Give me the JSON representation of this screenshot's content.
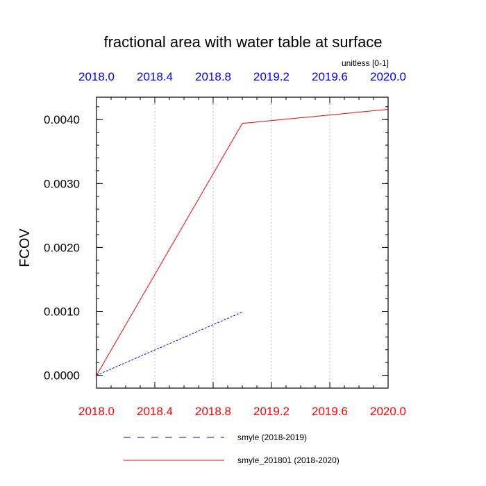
{
  "chart_data": {
    "type": "line",
    "title": "fractional area with water table at surface",
    "units": "unitless [0-1]",
    "ylabel": "FCOV",
    "xlim": [
      2018.0,
      2020.0
    ],
    "ylim": [
      -0.0002,
      0.00435
    ],
    "x_ticks": [
      "2018.0",
      "2018.4",
      "2018.8",
      "2019.2",
      "2019.6",
      "2020.0"
    ],
    "y_ticks": [
      "0.0000",
      "0.0010",
      "0.0020",
      "0.0030",
      "0.0040"
    ],
    "grid": "vertical dotted at top-axis ticks",
    "top_axis_color": "#0000ff",
    "bottom_axis_color": "#ff0000",
    "legend_position": "bottom",
    "series": [
      {
        "name": "smyle (2018-2019)",
        "color": "#0000ff",
        "style": "dashed",
        "x": [
          2018.0,
          2019.0
        ],
        "y": [
          0.0,
          0.00099
        ]
      },
      {
        "name": "smyle_201801 (2018-2020)",
        "color": "#ff0000",
        "style": "solid",
        "x": [
          2018.0,
          2019.0,
          2020.0
        ],
        "y": [
          0.0,
          0.00394,
          0.00416
        ]
      }
    ]
  }
}
